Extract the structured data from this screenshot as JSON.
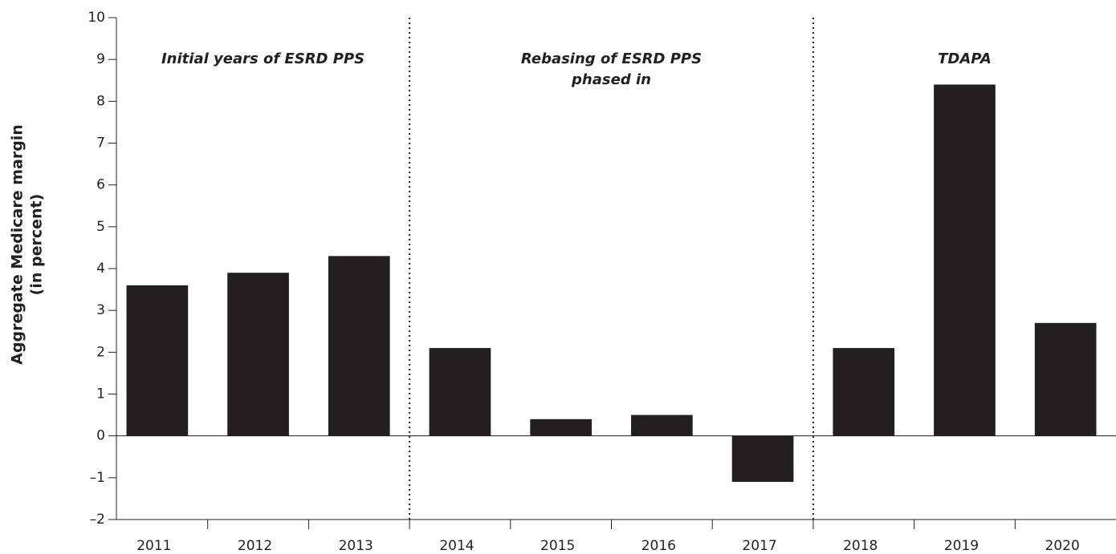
{
  "chart_data": {
    "type": "bar",
    "ylabel": [
      "Aggregate Medicare margin",
      "(in percent)"
    ],
    "categories": [
      "2011",
      "2012",
      "2013",
      "2014",
      "2015",
      "2016",
      "2017",
      "2018",
      "2019",
      "2020"
    ],
    "values": [
      3.6,
      3.9,
      4.3,
      2.1,
      0.4,
      0.5,
      -1.1,
      2.1,
      8.4,
      2.7
    ],
    "color": "#231f20",
    "ylim": [
      -2,
      10
    ],
    "yticks": [
      {
        "value": -2,
        "label": "–2"
      },
      {
        "value": -1,
        "label": "–1"
      },
      0,
      1,
      2,
      3,
      4,
      5,
      6,
      7,
      8,
      9,
      10
    ],
    "annotations": [
      [
        "Initial years of ESRD PPS"
      ],
      [
        "Rebasing of ESRD PPS",
        "phased in"
      ],
      [
        "TDAPA"
      ]
    ]
  }
}
